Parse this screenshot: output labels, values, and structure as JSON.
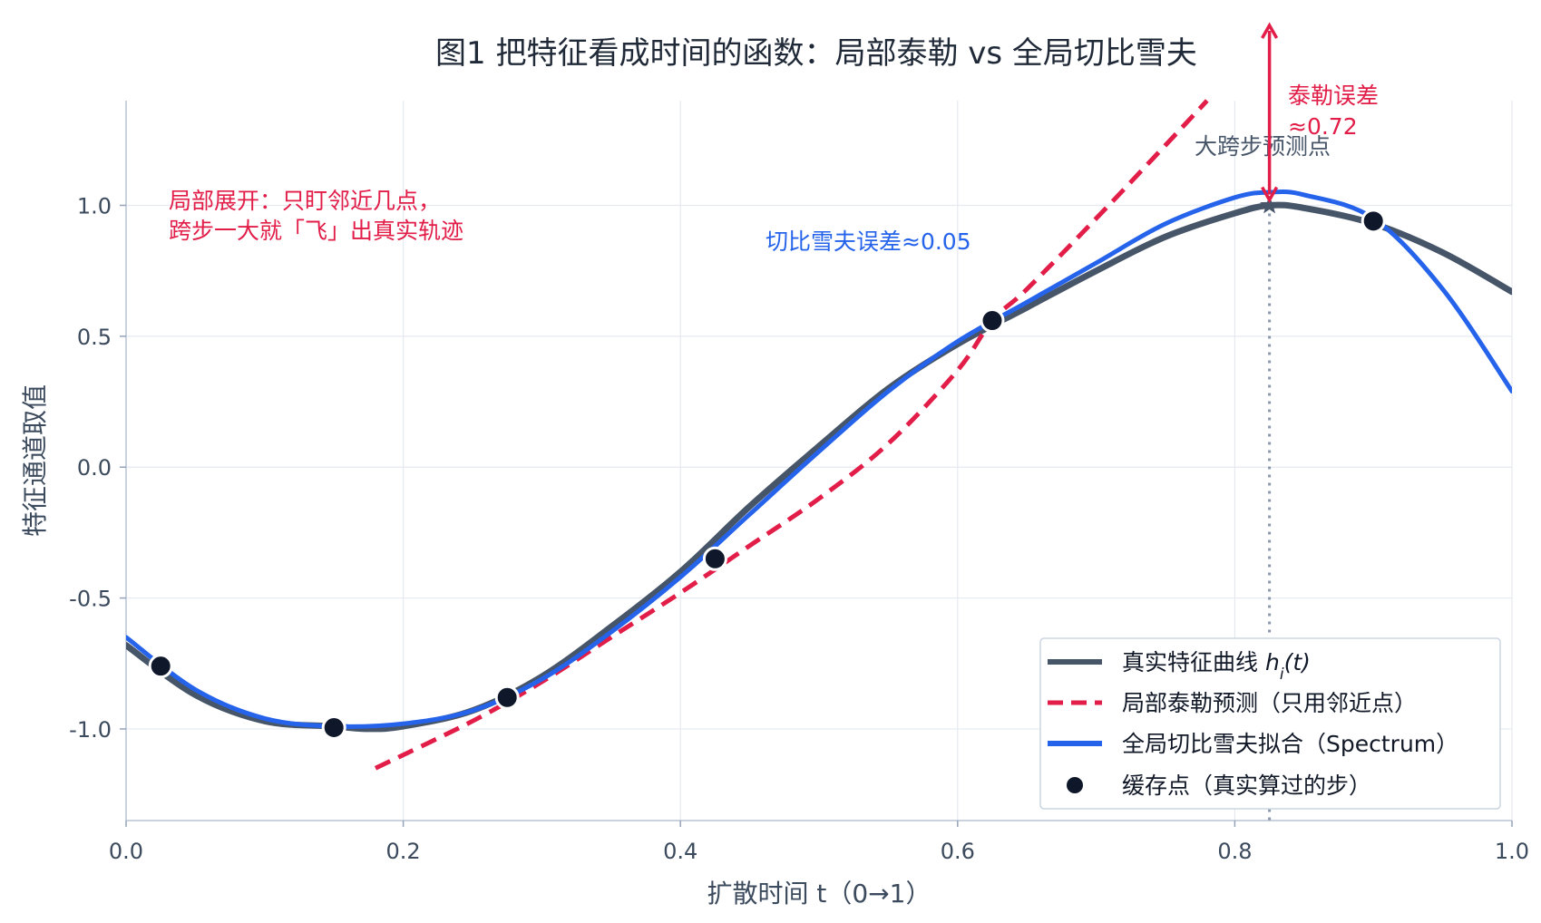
{
  "chart_data": {
    "type": "line",
    "title": "图1  把特征看成时间的函数：局部泰勒 vs 全局切比雪夫",
    "xlabel": "扩散时间 t（0→1）",
    "ylabel": "特征通道取值",
    "xlim": [
      0.0,
      1.0
    ],
    "ylim": [
      -1.35,
      1.4
    ],
    "xticks": [
      {
        "value": 0.0,
        "label": "0.0"
      },
      {
        "value": 0.2,
        "label": "0.2"
      },
      {
        "value": 0.4,
        "label": "0.4"
      },
      {
        "value": 0.6,
        "label": "0.6"
      },
      {
        "value": 0.8,
        "label": "0.8"
      },
      {
        "value": 1.0,
        "label": "1.0"
      }
    ],
    "yticks": [
      {
        "value": 1.0,
        "label": "1.0"
      },
      {
        "value": 0.5,
        "label": "0.5"
      },
      {
        "value": 0.0,
        "label": "0.0"
      },
      {
        "value": -0.5,
        "label": "-0.5"
      },
      {
        "value": -1.0,
        "label": "-1.0"
      }
    ],
    "grid": true,
    "legend_position": "bottom-right",
    "series": [
      {
        "name": "真实特征曲线",
        "name_math": "h_i(t)",
        "style": "solid",
        "color": "#475569",
        "x": [
          0.0,
          0.05,
          0.1,
          0.15,
          0.175,
          0.2,
          0.25,
          0.3,
          0.35,
          0.4,
          0.45,
          0.5,
          0.55,
          0.6,
          0.65,
          0.7,
          0.75,
          0.8,
          0.825,
          0.85,
          0.9,
          0.95,
          1.0
        ],
        "y": [
          -0.68,
          -0.87,
          -0.97,
          -0.99,
          -1.0,
          -0.99,
          -0.93,
          -0.8,
          -0.61,
          -0.4,
          -0.15,
          0.08,
          0.3,
          0.47,
          0.61,
          0.75,
          0.88,
          0.97,
          1.0,
          0.99,
          0.93,
          0.82,
          0.67
        ]
      },
      {
        "name": "局部泰勒预测（只用邻近点）",
        "style": "dashed",
        "color": "#e11d48",
        "x": [
          0.18,
          0.25,
          0.3,
          0.35,
          0.4,
          0.45,
          0.5,
          0.55,
          0.6,
          0.625,
          0.65,
          0.7,
          0.75,
          0.78
        ],
        "y": [
          -1.15,
          -0.97,
          -0.82,
          -0.65,
          -0.48,
          -0.3,
          -0.12,
          0.09,
          0.37,
          0.56,
          0.68,
          0.95,
          1.23,
          1.4
        ]
      },
      {
        "name": "全局切比雪夫拟合（Spectrum）",
        "style": "solid",
        "color": "#2563eb",
        "x": [
          0.0,
          0.05,
          0.1,
          0.15,
          0.2,
          0.25,
          0.3,
          0.35,
          0.4,
          0.45,
          0.5,
          0.55,
          0.6,
          0.65,
          0.7,
          0.75,
          0.8,
          0.825,
          0.85,
          0.9,
          0.95,
          1.0
        ],
        "y": [
          -0.65,
          -0.85,
          -0.96,
          -0.99,
          -0.98,
          -0.93,
          -0.81,
          -0.63,
          -0.42,
          -0.18,
          0.06,
          0.29,
          0.48,
          0.63,
          0.78,
          0.93,
          1.03,
          1.05,
          1.04,
          0.95,
          0.68,
          0.29
        ]
      },
      {
        "name": "缓存点（真实算过的步）",
        "style": "markers",
        "color": "#0f172a",
        "x": [
          0.025,
          0.15,
          0.275,
          0.425,
          0.625,
          0.9
        ],
        "y": [
          -0.76,
          -0.995,
          -0.88,
          -0.35,
          0.56,
          0.94
        ]
      }
    ],
    "prediction_point": {
      "x": 0.825,
      "y": 1.0,
      "label": "大跨步预测点"
    },
    "annotations": [
      {
        "text": "局部展开：只盯邻近几点，",
        "color": "#e11d48"
      },
      {
        "text": "跨步一大就「飞」出真实轨迹",
        "color": "#e11d48"
      },
      {
        "text": "切比雪夫误差≈0.05",
        "color": "#2563eb"
      },
      {
        "text": "泰勒误差",
        "color": "#e11d48"
      },
      {
        "text": "≈0.72",
        "color": "#e11d48"
      }
    ]
  }
}
